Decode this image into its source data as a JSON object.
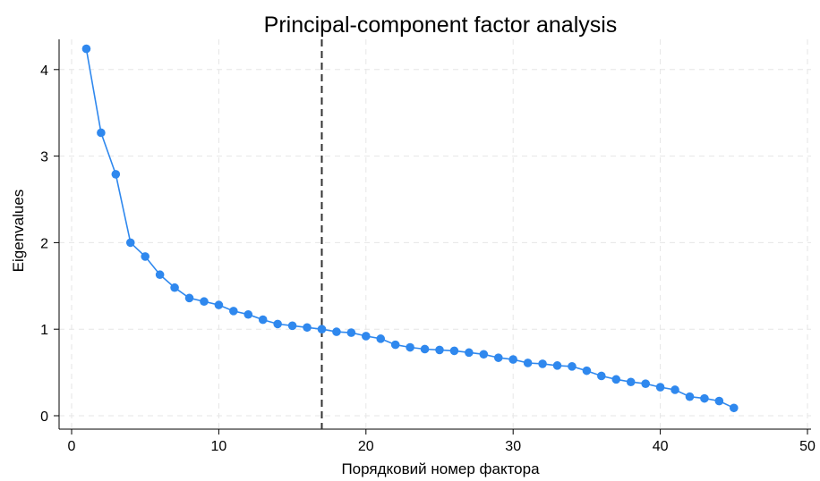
{
  "chart_data": {
    "type": "line",
    "title": "Principal-component factor analysis",
    "xlabel": "Порядковий номер фактора",
    "ylabel": "Eigenvalues",
    "xlim": [
      0,
      50
    ],
    "ylim": [
      0,
      4.4
    ],
    "xticks": [
      0,
      10,
      20,
      30,
      40,
      50
    ],
    "yticks": [
      0,
      1,
      2,
      3,
      4
    ],
    "grid": true,
    "reference_line": {
      "x": 17,
      "style": "dashed",
      "color": "#333333"
    },
    "series": [
      {
        "color": "#2f88ee",
        "marker": "circle",
        "x": [
          1,
          2,
          3,
          4,
          5,
          6,
          7,
          8,
          9,
          10,
          11,
          12,
          13,
          14,
          15,
          16,
          17,
          18,
          19,
          20,
          21,
          22,
          23,
          24,
          25,
          26,
          27,
          28,
          29,
          30,
          31,
          32,
          33,
          34,
          35,
          36,
          37,
          38,
          39,
          40,
          41,
          42,
          43,
          44,
          45
        ],
        "y": [
          4.24,
          3.27,
          2.79,
          2.0,
          1.84,
          1.63,
          1.48,
          1.36,
          1.32,
          1.28,
          1.21,
          1.17,
          1.11,
          1.06,
          1.04,
          1.02,
          1.0,
          0.97,
          0.96,
          0.92,
          0.89,
          0.82,
          0.79,
          0.77,
          0.76,
          0.75,
          0.73,
          0.71,
          0.67,
          0.65,
          0.61,
          0.6,
          0.58,
          0.57,
          0.52,
          0.46,
          0.42,
          0.39,
          0.37,
          0.33,
          0.3,
          0.22,
          0.2,
          0.17,
          0.09
        ]
      }
    ]
  }
}
